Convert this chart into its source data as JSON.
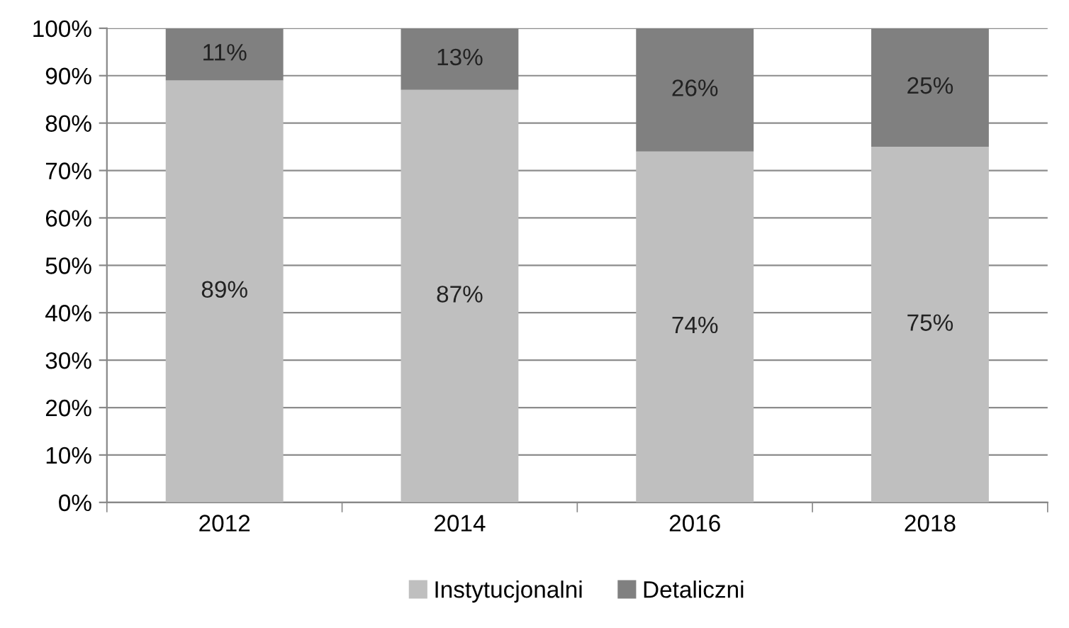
{
  "chart_data": {
    "type": "bar",
    "stacked": true,
    "categories": [
      "2012",
      "2014",
      "2016",
      "2018"
    ],
    "series": [
      {
        "name": "Instytucjonalni",
        "color": "#bfbfbf",
        "values": [
          89,
          87,
          74,
          75
        ],
        "value_labels": [
          "89%",
          "87%",
          "74%",
          "75%"
        ]
      },
      {
        "name": "Detaliczni",
        "color": "#808080",
        "values": [
          11,
          13,
          26,
          25
        ],
        "value_labels": [
          "11%",
          "13%",
          "26%",
          "25%"
        ]
      }
    ],
    "ylim": [
      0,
      100
    ],
    "yticks": [
      {
        "value": 0,
        "label": "0%"
      },
      {
        "value": 10,
        "label": "10%"
      },
      {
        "value": 20,
        "label": "20%"
      },
      {
        "value": 30,
        "label": "30%"
      },
      {
        "value": 40,
        "label": "40%"
      },
      {
        "value": 50,
        "label": "50%"
      },
      {
        "value": 60,
        "label": "60%"
      },
      {
        "value": 70,
        "label": "70%"
      },
      {
        "value": 80,
        "label": "80%"
      },
      {
        "value": 90,
        "label": "90%"
      },
      {
        "value": 100,
        "label": "100%"
      }
    ],
    "grid": "y",
    "legend": "bottom"
  }
}
